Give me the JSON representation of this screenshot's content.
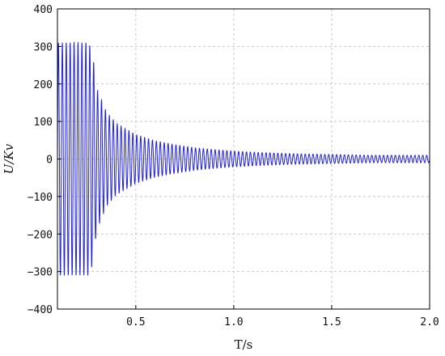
{
  "chart_data": {
    "type": "line",
    "title": "",
    "xlabel": "T/s",
    "ylabel": "U/Kv",
    "xlim": [
      0.1,
      2.0
    ],
    "ylim": [
      -400,
      400
    ],
    "x_ticks": [
      0.5,
      1.0,
      1.5,
      2.0
    ],
    "x_tick_labels": [
      "0.5",
      "1.0",
      "1.5",
      "2.0"
    ],
    "y_ticks": [
      -400,
      -300,
      -200,
      -100,
      0,
      100,
      200,
      300,
      400
    ],
    "y_tick_labels": [
      "−400",
      "−300",
      "−200",
      "−100",
      "0",
      "100",
      "200",
      "300",
      "400"
    ],
    "grid": true,
    "grid_style": "dashed",
    "legend": "none",
    "line_color": "#1f1fdd",
    "series": [
      {
        "oscillation_hz": 50,
        "envelope": {
          "x": [
            0.1,
            0.26,
            0.28,
            0.3,
            0.35,
            0.4,
            0.5,
            0.6,
            0.7,
            0.8,
            0.9,
            1.0,
            1.1,
            1.2,
            1.3,
            1.5,
            1.7,
            2.0
          ],
          "amplitude": [
            310,
            310,
            280,
            190,
            125,
            95,
            65,
            48,
            38,
            30,
            25,
            21,
            18,
            16,
            14,
            12,
            10,
            10
          ]
        }
      }
    ]
  }
}
